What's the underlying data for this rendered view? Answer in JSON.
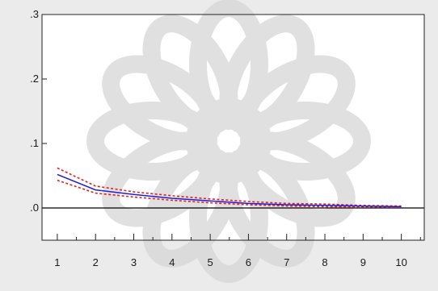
{
  "chart_data": {
    "type": "line",
    "title": "",
    "xlabel": "",
    "ylabel": "",
    "x": [
      1,
      2,
      3,
      4,
      5,
      6,
      7,
      8,
      9,
      10
    ],
    "xlim": [
      0.6,
      10.6
    ],
    "ylim": [
      -0.05,
      0.3
    ],
    "xticks": [
      "1",
      "2",
      "3",
      "4",
      "5",
      "6",
      "7",
      "8",
      "9",
      "10"
    ],
    "yticks": [
      {
        "value": 0.3,
        "label": ".3"
      },
      {
        "value": 0.2,
        "label": ".2"
      },
      {
        "value": 0.1,
        "label": ".1"
      },
      {
        "value": 0.0,
        "label": ".0"
      }
    ],
    "zero_line": true,
    "grid": false,
    "legend": "none",
    "series": [
      {
        "role": "response",
        "color": "#1f1fd6",
        "dash": "solid",
        "values": [
          0.052,
          0.028,
          0.021,
          0.015,
          0.011,
          0.007,
          0.005,
          0.004,
          0.003,
          0.002
        ]
      },
      {
        "role": "upper-band",
        "color": "#e02020",
        "dash": "dotted",
        "values": [
          0.062,
          0.034,
          0.025,
          0.019,
          0.014,
          0.01,
          0.007,
          0.006,
          0.004,
          0.003
        ]
      },
      {
        "role": "lower-band",
        "color": "#e02020",
        "dash": "dotted",
        "values": [
          0.043,
          0.023,
          0.017,
          0.012,
          0.008,
          0.005,
          0.003,
          0.002,
          0.002,
          0.001
        ]
      }
    ]
  }
}
